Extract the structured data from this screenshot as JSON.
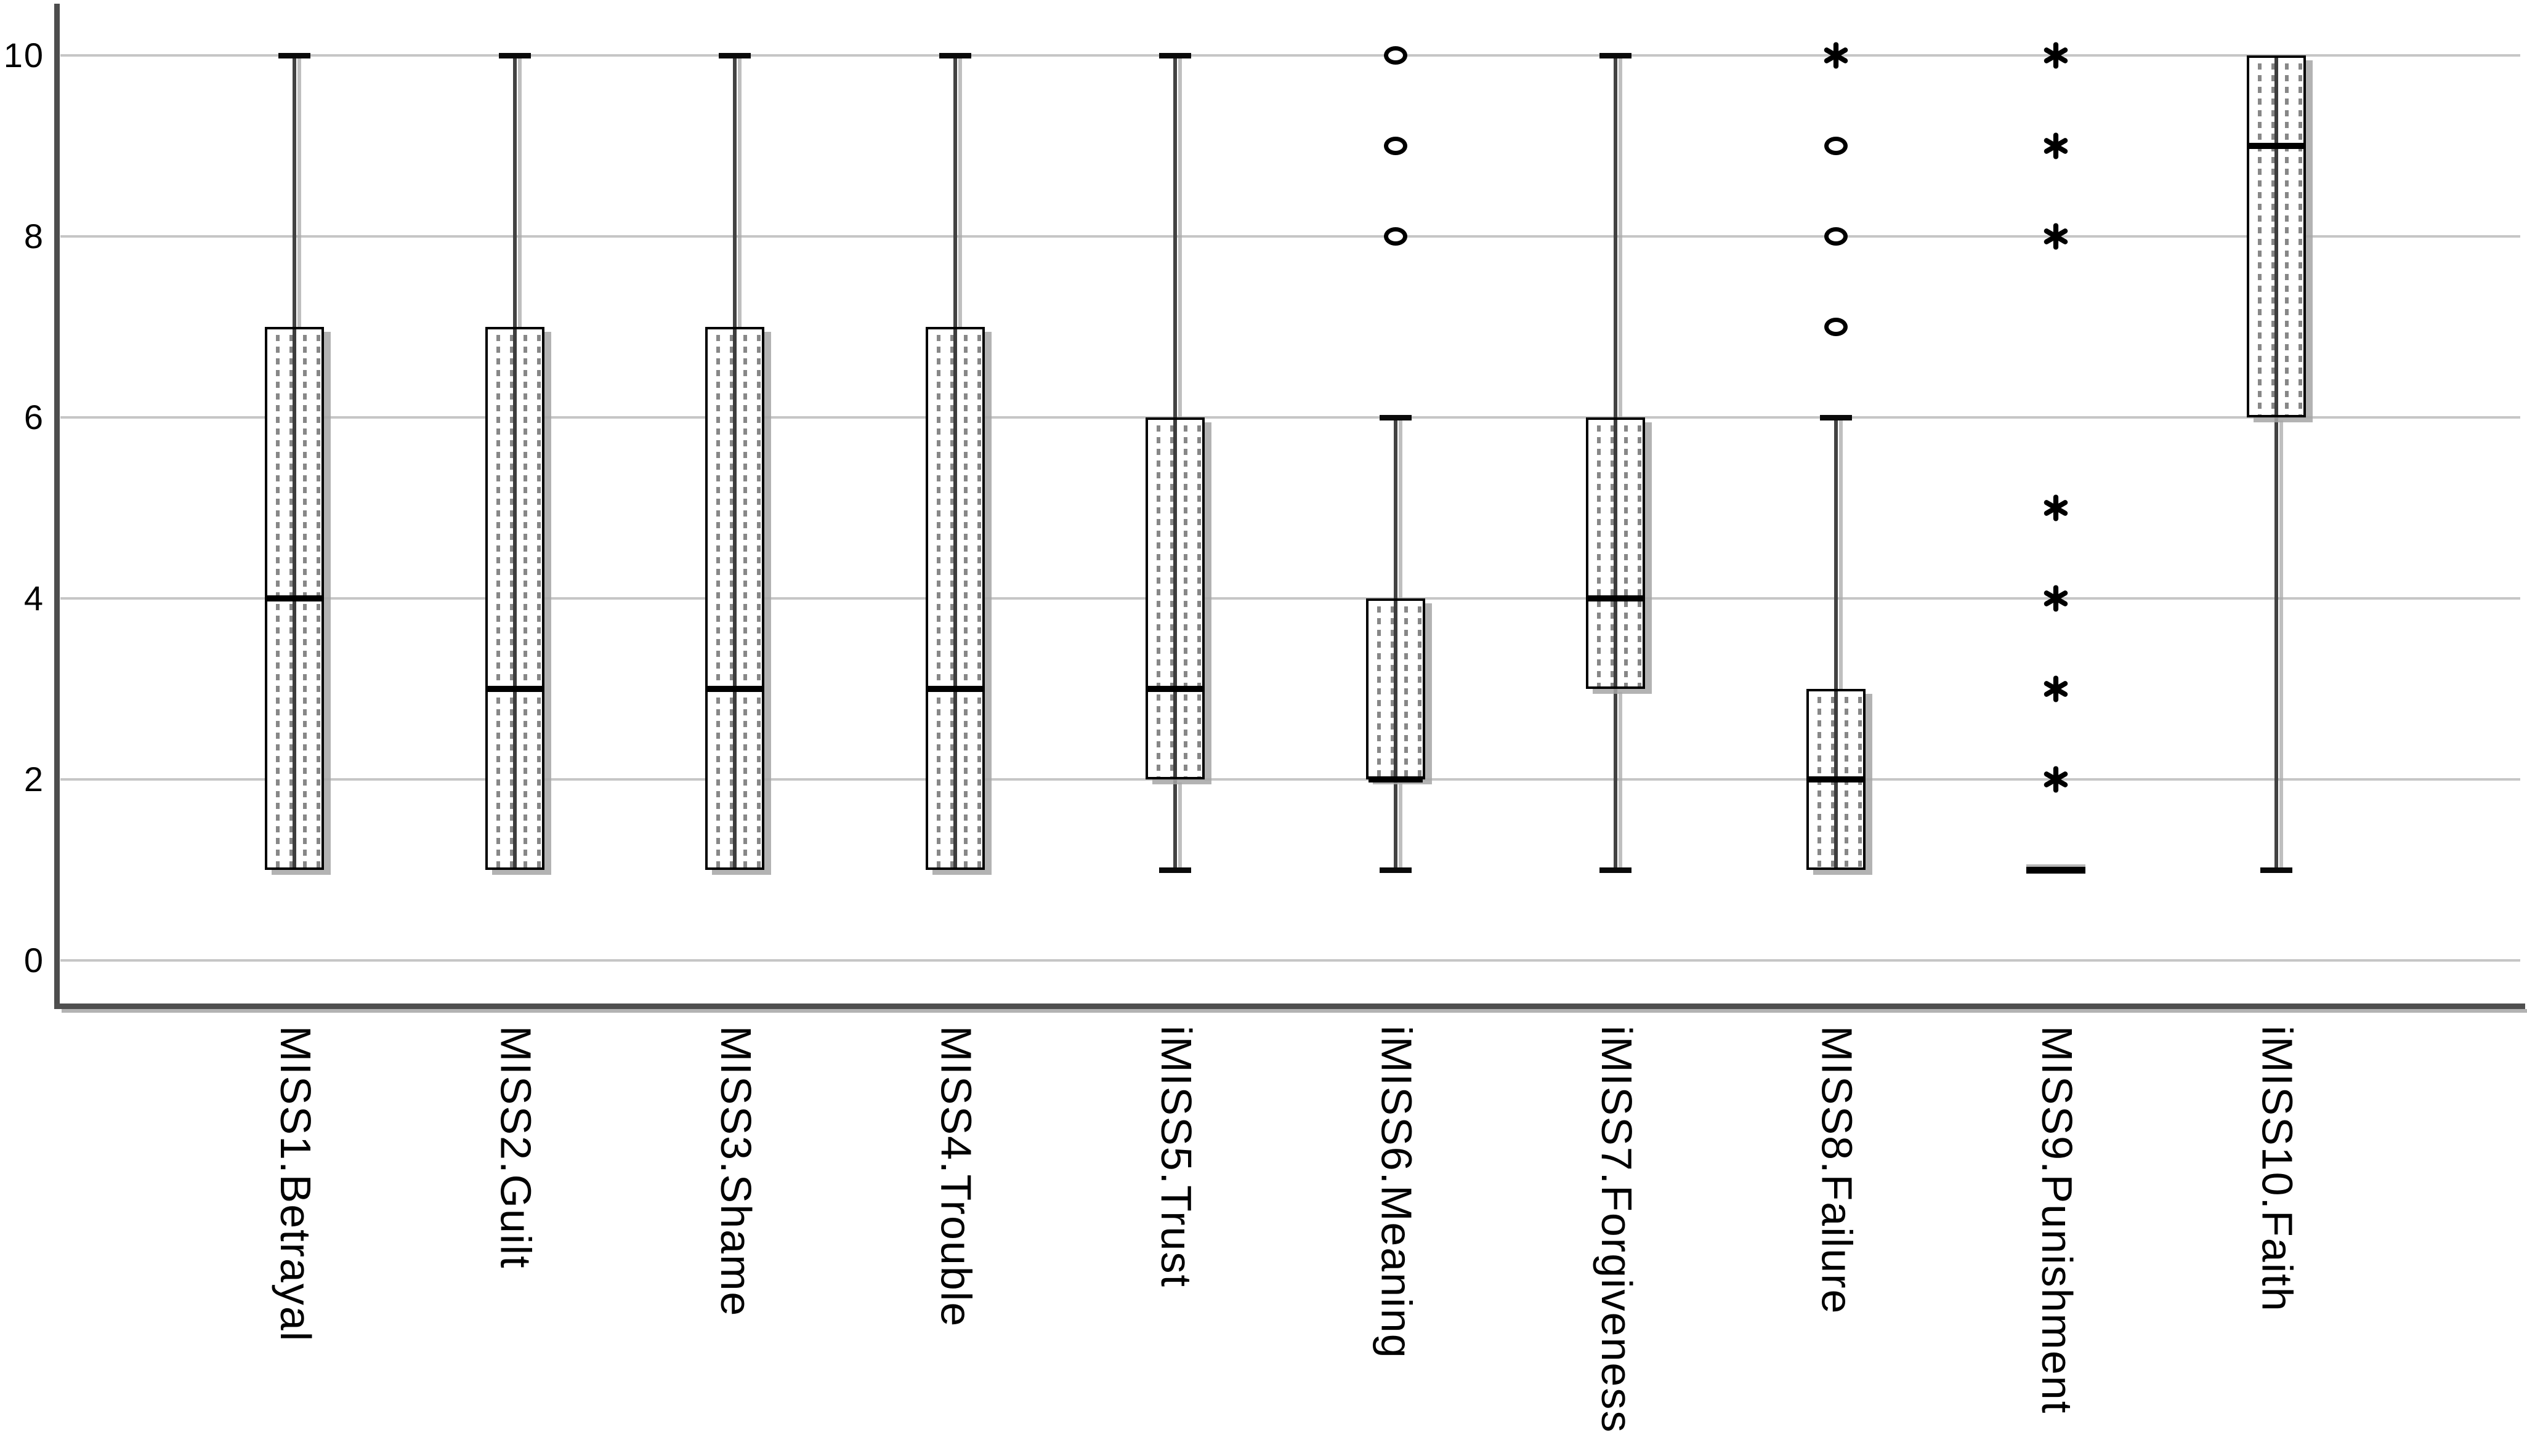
{
  "chart_data": {
    "type": "box",
    "title": "",
    "xlabel": "",
    "ylabel": "",
    "ylim": [
      0,
      10
    ],
    "yticks": [
      10,
      8,
      6,
      4,
      2,
      0
    ],
    "grid": true,
    "legend": false,
    "marker_semantics": {
      "circle": "outlier",
      "asterisk": "extreme value"
    },
    "categories": [
      "MISS1.Betrayal",
      "MISS2.Guilt",
      "MISS3.Shame",
      "MISS4.Trouble",
      "iMISS5.Trust",
      "iMISS6.Meaning",
      "iMISS7.Forgiveness",
      "MISS8.Failure",
      "MISS9.Punishment",
      "iMISS10.Faith"
    ],
    "series": [
      {
        "category": "MISS1.Betrayal",
        "q1": 1,
        "median": 4,
        "q3": 7,
        "whisker_low": null,
        "whisker_high": 10,
        "outliers": [],
        "extremes": [],
        "collapsed": false
      },
      {
        "category": "MISS2.Guilt",
        "q1": 1,
        "median": 3,
        "q3": 7,
        "whisker_low": null,
        "whisker_high": 10,
        "outliers": [],
        "extremes": [],
        "collapsed": false
      },
      {
        "category": "MISS3.Shame",
        "q1": 1,
        "median": 3,
        "q3": 7,
        "whisker_low": null,
        "whisker_high": 10,
        "outliers": [],
        "extremes": [],
        "collapsed": false
      },
      {
        "category": "MISS4.Trouble",
        "q1": 1,
        "median": 3,
        "q3": 7,
        "whisker_low": null,
        "whisker_high": 10,
        "outliers": [],
        "extremes": [],
        "collapsed": false
      },
      {
        "category": "iMISS5.Trust",
        "q1": 2,
        "median": 3,
        "q3": 6,
        "whisker_low": 1,
        "whisker_high": 10,
        "outliers": [],
        "extremes": [],
        "collapsed": false
      },
      {
        "category": "iMISS6.Meaning",
        "q1": 2,
        "median": 2,
        "q3": 4,
        "whisker_low": 1,
        "whisker_high": 6,
        "outliers": [
          8,
          9,
          10
        ],
        "extremes": [],
        "collapsed": false
      },
      {
        "category": "iMISS7.Forgiveness",
        "q1": 3,
        "median": 4,
        "q3": 6,
        "whisker_low": 1,
        "whisker_high": 10,
        "outliers": [],
        "extremes": [],
        "collapsed": false
      },
      {
        "category": "MISS8.Failure",
        "q1": 1,
        "median": 2,
        "q3": 3,
        "whisker_low": null,
        "whisker_high": 6,
        "outliers": [
          7,
          8,
          9
        ],
        "extremes": [
          10
        ],
        "collapsed": false
      },
      {
        "category": "MISS9.Punishment",
        "q1": 1,
        "median": 1,
        "q3": 1,
        "whisker_low": null,
        "whisker_high": null,
        "outliers": [],
        "extremes": [
          2,
          3,
          4,
          5,
          8,
          9,
          10
        ],
        "collapsed": true
      },
      {
        "category": "iMISS10.Faith",
        "q1": 6,
        "median": 9,
        "q3": 10,
        "whisker_low": 1,
        "whisker_high": null,
        "outliers": [],
        "extremes": [],
        "collapsed": false
      }
    ],
    "colors": {
      "background": "#ffffff",
      "gridline": "#c6c6c6",
      "axis": "#4d4d4d",
      "axis_shadow": "#b3b3b3",
      "box_border": "#000000",
      "box_fill": "#ffffff",
      "box_pattern": "#878787",
      "box_shadow": "#a6a6a6",
      "median": "#000000",
      "whisker": "#424242",
      "marker": "#000000",
      "text": "#000000"
    }
  }
}
